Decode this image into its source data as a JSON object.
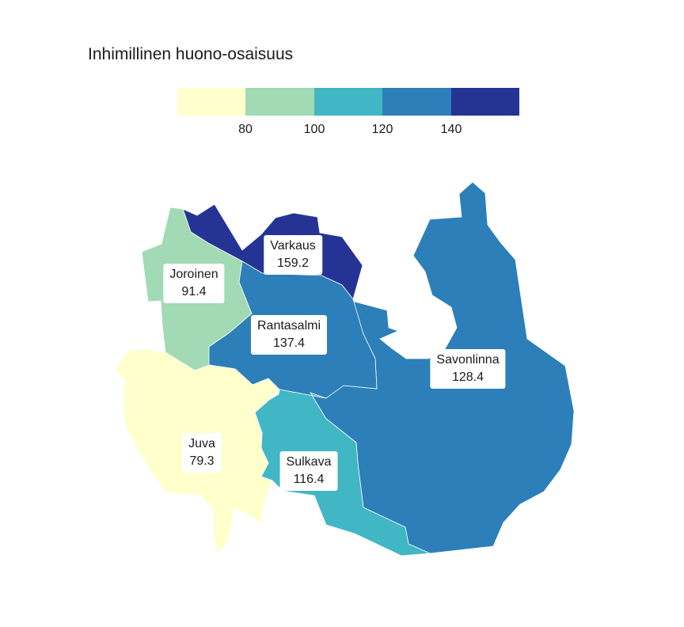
{
  "title": "Inhimillinen huono-osaisuus",
  "legend": {
    "colors": [
      "#ffffcc",
      "#a1dab4",
      "#41b6c4",
      "#2c7fb8",
      "#253494"
    ],
    "ticks": [
      "80",
      "100",
      "120",
      "140"
    ]
  },
  "municipalities": [
    {
      "name": "Varkaus",
      "value": "159.2",
      "color": "#253494"
    },
    {
      "name": "Joroinen",
      "value": "91.4",
      "color": "#a1dab4"
    },
    {
      "name": "Rantasalmi",
      "value": "137.4",
      "color": "#2c7fb8"
    },
    {
      "name": "Savonlinna",
      "value": "128.4",
      "color": "#2c7fb8"
    },
    {
      "name": "Juva",
      "value": "79.3",
      "color": "#ffffcc"
    },
    {
      "name": "Sulkava",
      "value": "116.4",
      "color": "#41b6c4"
    }
  ]
}
